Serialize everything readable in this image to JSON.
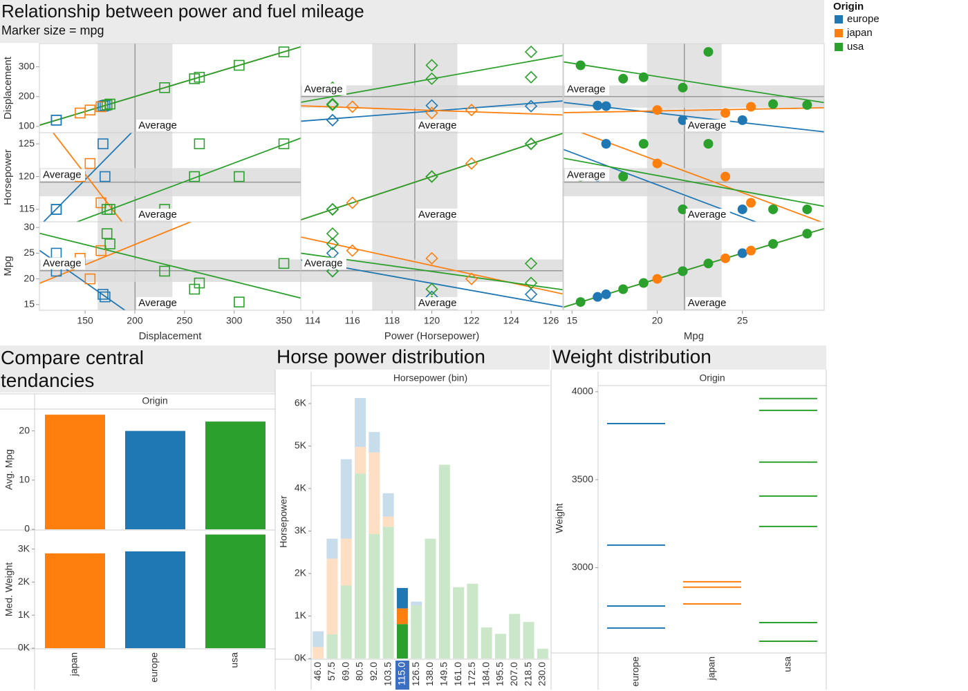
{
  "chart_data": [
    {
      "type": "scatter_matrix",
      "title": "Relationship between power and fuel mileage",
      "subtitle": "Marker size = mpg",
      "legend_title": "Origin",
      "reference_label": "Average",
      "markers": [
        "square",
        "diamond",
        "circle"
      ],
      "columns": [
        {
          "label": "Displacement",
          "xlim": [
            104,
            367
          ],
          "xticks": [
            150,
            200,
            250,
            300,
            350
          ]
        },
        {
          "label": "Power (Horsepower)",
          "xlim": [
            113.4,
            126.6
          ],
          "xticks": [
            114,
            116,
            118,
            120,
            122,
            124,
            126
          ]
        },
        {
          "label": "Mpg",
          "xlim": [
            14.5,
            29.8
          ],
          "xticks": [
            15,
            20,
            25
          ]
        }
      ],
      "rows": [
        {
          "label": "Displacement",
          "ylim": [
            79,
            378
          ],
          "yticks": [
            100,
            200,
            300
          ]
        },
        {
          "label": "Horsepower",
          "ylim": [
            113.1,
            126.7
          ],
          "yticks": [
            115,
            120,
            125
          ]
        },
        {
          "label": "Mpg",
          "ylim": [
            13.9,
            31.1
          ],
          "yticks": [
            15,
            20,
            25,
            30
          ]
        }
      ],
      "series": [
        {
          "name": "europe",
          "color": "#1f77b4",
          "values": [
            [
              168,
              170,
              121,
              121
            ],
            [
              125,
              120,
              115,
              115
            ],
            [
              17,
              16.5,
              21.5,
              25
            ]
          ]
        },
        {
          "name": "japan",
          "color": "#ff7f0e",
          "values": [
            [
              155,
              145,
              166
            ],
            [
              122,
              120,
              116
            ],
            [
              20,
              24,
              25.5
            ]
          ]
        },
        {
          "name": "usa",
          "color": "#2ca02c",
          "values": [
            [
              305,
              260,
              265,
              230,
              350,
              175,
              172
            ],
            [
              120,
              120,
              125,
              115,
              125,
              115,
              115
            ],
            [
              15.5,
              18,
              19.2,
              21.5,
              23,
              26.8,
              28.8
            ]
          ]
        }
      ]
    },
    {
      "type": "bar",
      "title": "Compare central tendancies",
      "header": "Origin",
      "categories": [
        "japan",
        "europe",
        "usa"
      ],
      "colors": [
        "#ff7f0e",
        "#1f77b4",
        "#2ca02c"
      ],
      "panels": [
        {
          "y_label": "Avg. Mpg",
          "values": [
            23.3,
            20,
            21.9
          ],
          "ylim": [
            0,
            24.3
          ],
          "yticks": [
            0,
            10,
            20
          ]
        },
        {
          "y_label": "Med. Weight",
          "values": [
            2870,
            2930,
            3440
          ],
          "ylim": [
            0,
            3556
          ],
          "yticks": [
            {
              "value": 0,
              "label": "0K"
            },
            {
              "value": 1000,
              "label": "1K"
            },
            {
              "value": 2000,
              "label": "2K"
            },
            {
              "value": 3000,
              "label": "3K"
            }
          ]
        }
      ]
    },
    {
      "type": "stacked_bar",
      "title": "Horse power distribution",
      "x_label": "Horsepower (bin)",
      "y_label": "Horsepower",
      "highlighted_category": "115.0",
      "categories": [
        "46.0",
        "57.5",
        "69.0",
        "80.5",
        "92.0",
        "103.5",
        "115.0",
        "126.5",
        "138.0",
        "149.5",
        "161.0",
        "172.5",
        "184.0",
        "195.5",
        "207.0",
        "218.5",
        "230.0"
      ],
      "series": [
        {
          "name": "usa",
          "color": "#2ca02c",
          "values": [
            0,
            570,
            1720,
            4350,
            2930,
            3100,
            810,
            1250,
            2820,
            4560,
            1680,
            1760,
            730,
            580,
            1050,
            860,
            230
          ]
        },
        {
          "name": "japan",
          "color": "#ff7f0e",
          "values": [
            270,
            1780,
            1100,
            630,
            1920,
            240,
            370,
            0,
            0,
            0,
            0,
            0,
            0,
            0,
            0,
            0,
            0
          ]
        },
        {
          "name": "europe",
          "color": "#1f77b4",
          "values": [
            370,
            470,
            1870,
            1150,
            480,
            550,
            480,
            90,
            0,
            0,
            0,
            0,
            0,
            0,
            0,
            0,
            0
          ]
        }
      ],
      "ylim": [
        0,
        6390
      ],
      "yticks": [
        {
          "value": 0,
          "label": "0K"
        },
        {
          "value": 1000,
          "label": "1K"
        },
        {
          "value": 2000,
          "label": "2K"
        },
        {
          "value": 3000,
          "label": "3K"
        },
        {
          "value": 4000,
          "label": "4K"
        },
        {
          "value": 5000,
          "label": "5K"
        },
        {
          "value": 6000,
          "label": "6K"
        }
      ]
    },
    {
      "type": "tick_strip",
      "title": "Weight distribution",
      "header": "Origin",
      "y_label": "Weight",
      "categories": [
        "europe",
        "japan",
        "usa"
      ],
      "colors": [
        "#1f77b4",
        "#ff7f0e",
        "#2ca02c"
      ],
      "values": [
        [
          3819,
          3128,
          2782,
          2657
        ],
        [
          2920,
          2889,
          2794
        ],
        [
          3961,
          3894,
          3600,
          3407,
          3234,
          2688,
          2582
        ]
      ],
      "ylim": [
        2515,
        4027
      ],
      "yticks": [
        3000,
        3500,
        4000
      ]
    }
  ]
}
